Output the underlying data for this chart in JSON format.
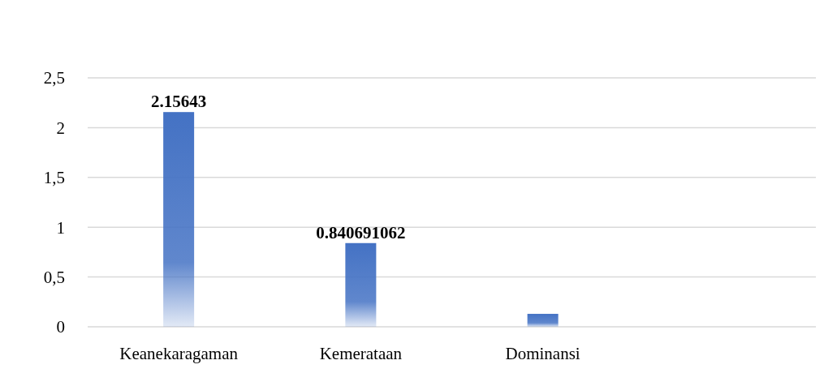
{
  "chart_data": {
    "type": "bar",
    "categories": [
      "Keanekaragaman",
      "Kemerataan",
      "Dominansi",
      null
    ],
    "values": [
      2.15643,
      0.840691062,
      0.13,
      null
    ],
    "value_labels": [
      "2.15643",
      "0.840691062",
      null,
      null
    ],
    "color": "#4472c4",
    "ylim": [
      0,
      2.5
    ],
    "yticks": [
      {
        "value": 0,
        "label": "0"
      },
      {
        "value": 0.5,
        "label": "0,5"
      },
      {
        "value": 1,
        "label": "1"
      },
      {
        "value": 1.5,
        "label": "1,5"
      },
      {
        "value": 2,
        "label": "2"
      },
      {
        "value": 2.5,
        "label": "2,5"
      }
    ],
    "grid": true
  }
}
